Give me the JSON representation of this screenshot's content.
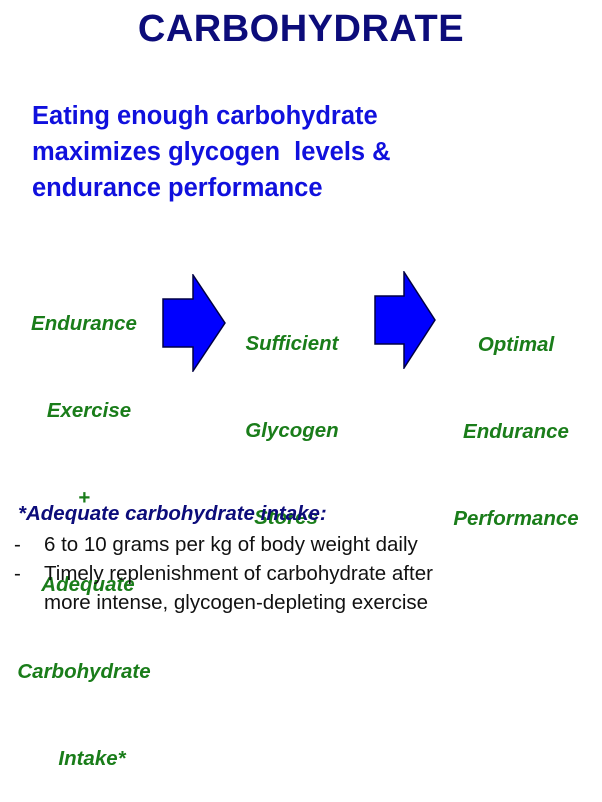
{
  "title": "CARBOHYDRATE",
  "subtitle_lines": [
    "Eating enough carbohydrate",
    "maximizes glycogen  levels &",
    "endurance performance"
  ],
  "flow": {
    "step1_lines": [
      "Endurance",
      "Exercise",
      "+",
      "Adequate",
      "Carbohydrate",
      "Intake*"
    ],
    "step2_lines": [
      "Sufficient",
      "Glycogen",
      "Stores"
    ],
    "step3_lines": [
      "Optimal",
      "Endurance",
      "Performance"
    ]
  },
  "note": {
    "title": "*Adequate carbohydrate intake:",
    "bullet_symbol": "-",
    "items": [
      [
        "6 to 10 grams per kg of body weight daily"
      ],
      [
        "Timely replenishment of carbohydrate after",
        "more intense, glycogen-depleting exercise"
      ]
    ]
  },
  "colors": {
    "title": "#0c0c7a",
    "subtitle": "#1010dd",
    "flow_text": "#1a7d1a",
    "arrow_fill": "#0000ff",
    "arrow_stroke": "#000044"
  },
  "icons": {
    "arrow1": "right-arrow-icon",
    "arrow2": "right-arrow-icon"
  }
}
